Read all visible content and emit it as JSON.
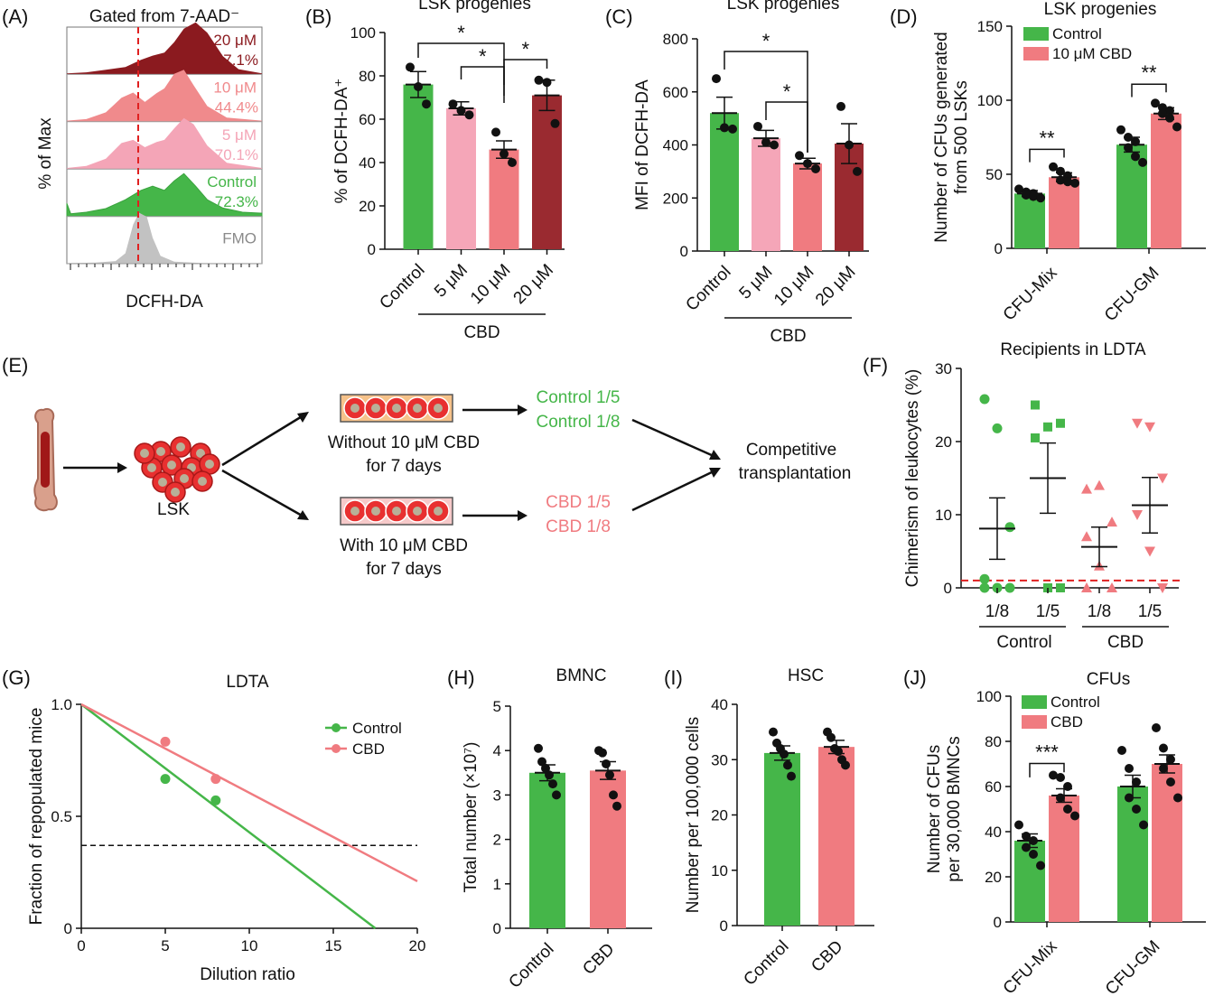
{
  "colors": {
    "control": "#45b649",
    "cbd": "#f07b80",
    "p5": "#f5a6b8",
    "p10": "#f07b80",
    "p20": "#9a2a30",
    "d20": "#8b1a1f",
    "d10": "#f08a8c",
    "d5": "#f4a5b7",
    "fmo": "#c2c2c2",
    "ref": "#e02020"
  },
  "panel_letters": [
    "(A)",
    "(B)",
    "(C)",
    "(D)",
    "(E)",
    "(F)",
    "(G)",
    "(H)",
    "(I)",
    "(J)"
  ],
  "chart_data": [
    {
      "panel": "A",
      "type": "histogram",
      "title": "Gated from 7-AAD⁻",
      "xlabel": "DCFH-DA",
      "ylabel": "% of Max",
      "tracks": [
        {
          "label": "20 μM",
          "value": "57.1%"
        },
        {
          "label": "10 μM",
          "value": "44.4%"
        },
        {
          "label": "5 μM",
          "value": "70.1%"
        },
        {
          "label": "Control",
          "value": "72.3%"
        },
        {
          "label": "FMO",
          "value": ""
        }
      ]
    },
    {
      "panel": "B",
      "type": "bar",
      "title": "LSK progenies",
      "ylabel": "% of DCFH-DA⁺",
      "ylim": [
        0,
        100
      ],
      "yticks": [
        0,
        20,
        40,
        60,
        80,
        100
      ],
      "categories": [
        "Control",
        "5 μM",
        "10 μM",
        "20 μM"
      ],
      "group_label": "CBD",
      "values": [
        76,
        65,
        46,
        71
      ],
      "errors": [
        6,
        3,
        4,
        7
      ],
      "points": [
        [
          84,
          75,
          67
        ],
        [
          67,
          64,
          62
        ],
        [
          54,
          44,
          40
        ],
        [
          78,
          77,
          58
        ]
      ],
      "sig": [
        {
          "from": 0,
          "to": 2,
          "label": "*"
        },
        {
          "from": 1,
          "to": 2,
          "label": "*"
        },
        {
          "from": 2,
          "to": 3,
          "label": "*"
        }
      ]
    },
    {
      "panel": "C",
      "type": "bar",
      "title": "LSK progenies",
      "ylabel": "MFI of DCFH-DA",
      "ylim": [
        0,
        800
      ],
      "yticks": [
        0,
        200,
        400,
        600,
        800
      ],
      "categories": [
        "Control",
        "5 μM",
        "10 μM",
        "20 μM"
      ],
      "group_label": "CBD",
      "values": [
        520,
        425,
        330,
        405
      ],
      "errors": [
        60,
        30,
        20,
        75
      ],
      "points": [
        [
          650,
          465,
          460
        ],
        [
          470,
          410,
          400
        ],
        [
          360,
          330,
          310
        ],
        [
          545,
          400,
          300
        ]
      ],
      "sig": [
        {
          "from": 0,
          "to": 2,
          "label": "*"
        },
        {
          "from": 1,
          "to": 2,
          "label": "*"
        }
      ]
    },
    {
      "panel": "D",
      "type": "bar",
      "title": "LSK progenies",
      "ylabel": "Number of CFUs generated from 500 LSKs",
      "ylim": [
        0,
        150
      ],
      "yticks": [
        0,
        50,
        100,
        150
      ],
      "categories": [
        "CFU-Mix",
        "CFU-GM"
      ],
      "series": [
        {
          "name": "Control",
          "values": [
            37,
            70
          ],
          "errors": [
            2,
            5
          ],
          "points": [
            [
              40,
              38,
              37,
              36,
              35,
              34
            ],
            [
              80,
              75,
              72,
              68,
              62,
              58
            ]
          ]
        },
        {
          "name": "10 μM CBD",
          "values": [
            48,
            91
          ],
          "errors": [
            3,
            4
          ],
          "points": [
            [
              55,
              52,
              49,
              46,
              45,
              44
            ],
            [
              98,
              95,
              93,
              91,
              88,
              82
            ]
          ]
        }
      ],
      "sig": [
        {
          "category": 0,
          "label": "**"
        },
        {
          "category": 1,
          "label": "**"
        }
      ]
    },
    {
      "panel": "F",
      "type": "scatter",
      "title": "Recipients in LDTA",
      "ylabel": "Chimerism of leukocytes (%)",
      "ylim": [
        0,
        30
      ],
      "yticks": [
        0,
        10,
        20,
        30
      ],
      "categories": [
        "1/8",
        "1/5",
        "1/8",
        "1/5"
      ],
      "groups": [
        "Control",
        "CBD"
      ],
      "threshold": 1,
      "columns": [
        {
          "mean": 8.1,
          "sem": 4.2,
          "points": [
            25.8,
            21.8,
            8.3,
            1.2,
            0,
            0,
            0
          ]
        },
        {
          "mean": 15.0,
          "sem": 4.8,
          "points": [
            25,
            22,
            22.5,
            20.5,
            0,
            0
          ]
        },
        {
          "mean": 5.6,
          "sem": 2.7,
          "points": [
            13.5,
            14,
            9,
            7,
            3,
            0,
            0
          ]
        },
        {
          "mean": 11.3,
          "sem": 3.8,
          "points": [
            22.5,
            22,
            15,
            10,
            5,
            0
          ]
        }
      ]
    },
    {
      "panel": "G",
      "type": "line",
      "title": "LDTA",
      "xlabel": "Dilution ratio",
      "ylabel": "Fraction of repopulated mice",
      "xlim": [
        0,
        20
      ],
      "ylim": [
        0,
        1
      ],
      "xticks": [
        0,
        5,
        10,
        15,
        20
      ],
      "yticks": [
        0,
        0.5,
        1.0
      ],
      "ytick_labels": [
        "0",
        "0.5",
        "1.0"
      ],
      "reference_y": 0.37,
      "series": [
        {
          "name": "Control",
          "line": [
            [
              0,
              1
            ],
            [
              17.5,
              0
            ]
          ],
          "points": [
            [
              5,
              0.667
            ],
            [
              8,
              0.571
            ]
          ]
        },
        {
          "name": "CBD",
          "line": [
            [
              0,
              1
            ],
            [
              20,
              0.21
            ]
          ],
          "points": [
            [
              5,
              0.833
            ],
            [
              8,
              0.667
            ]
          ]
        }
      ]
    },
    {
      "panel": "H",
      "type": "bar",
      "title": "BMNC",
      "ylabel": "Total number (×10⁷)",
      "ylim": [
        0,
        5
      ],
      "yticks": [
        0,
        1,
        2,
        3,
        4,
        5
      ],
      "categories": [
        "Control",
        "CBD"
      ],
      "values": [
        3.5,
        3.55
      ],
      "errors": [
        0.18,
        0.2
      ],
      "points": [
        [
          4.05,
          3.75,
          3.6,
          3.45,
          3.25,
          3.0
        ],
        [
          4.0,
          3.95,
          3.7,
          3.45,
          3.0,
          2.75
        ]
      ]
    },
    {
      "panel": "I",
      "type": "bar",
      "title": "HSC",
      "ylabel": "Number per 100,000 cells",
      "ylim": [
        0,
        40
      ],
      "yticks": [
        0,
        10,
        20,
        30,
        40
      ],
      "categories": [
        "Control",
        "CBD"
      ],
      "values": [
        31.2,
        32.3
      ],
      "errors": [
        1.3,
        1.2
      ],
      "points": [
        [
          35,
          33,
          32,
          31,
          29,
          27
        ],
        [
          35,
          34,
          32,
          31.5,
          30,
          29
        ]
      ]
    },
    {
      "panel": "J",
      "type": "bar",
      "title": "CFUs",
      "ylabel": "Number of CFUs per 30,000 BMNCs",
      "ylim": [
        0,
        100
      ],
      "yticks": [
        0,
        20,
        40,
        60,
        80,
        100
      ],
      "categories": [
        "CFU-Mix",
        "CFU-GM"
      ],
      "series": [
        {
          "name": "Control",
          "values": [
            36,
            60
          ],
          "errors": [
            3,
            5
          ],
          "points": [
            [
              43,
              38,
              36,
              33,
              30,
              25
            ],
            [
              76,
              68,
              62,
              55,
              50,
              43
            ]
          ]
        },
        {
          "name": "CBD",
          "values": [
            56,
            70
          ],
          "errors": [
            3,
            4
          ],
          "points": [
            [
              65,
              64,
              60,
              55,
              50,
              47
            ],
            [
              86,
              77,
              72,
              68,
              62,
              55
            ]
          ]
        }
      ],
      "sig": [
        {
          "category": 0,
          "label": "***"
        }
      ]
    }
  ],
  "schematic": {
    "panel": "E",
    "lsk_label": "LSK",
    "without_label": "Without 10 μM CBD",
    "without_days": "for 7 days",
    "with_label": "With 10 μM CBD",
    "with_days": "for 7 days",
    "control_groups": [
      "Control 1/5",
      "Control 1/8"
    ],
    "cbd_groups": [
      "CBD 1/5",
      "CBD 1/8"
    ],
    "outcome_line1": "Competitive",
    "outcome_line2": "transplantation"
  }
}
